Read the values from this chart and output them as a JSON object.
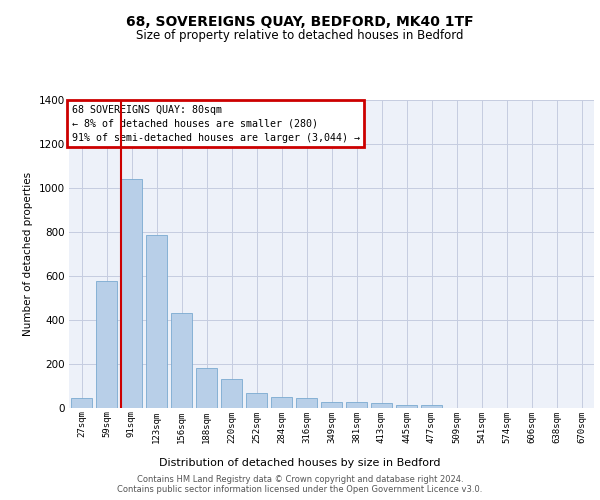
{
  "title": "68, SOVEREIGNS QUAY, BEDFORD, MK40 1TF",
  "subtitle": "Size of property relative to detached houses in Bedford",
  "xlabel": "Distribution of detached houses by size in Bedford",
  "ylabel": "Number of detached properties",
  "categories": [
    "27sqm",
    "59sqm",
    "91sqm",
    "123sqm",
    "156sqm",
    "188sqm",
    "220sqm",
    "252sqm",
    "284sqm",
    "316sqm",
    "349sqm",
    "381sqm",
    "413sqm",
    "445sqm",
    "477sqm",
    "509sqm",
    "541sqm",
    "574sqm",
    "606sqm",
    "638sqm",
    "670sqm"
  ],
  "values": [
    45,
    575,
    1040,
    785,
    430,
    180,
    130,
    65,
    50,
    45,
    25,
    25,
    20,
    12,
    10,
    0,
    0,
    0,
    0,
    0,
    0
  ],
  "bar_color": "#b8cfe8",
  "bar_edge_color": "#7aaad0",
  "marker_line_index": 2,
  "marker_line_color": "#cc0000",
  "ylim_max": 1400,
  "yticks": [
    0,
    200,
    400,
    600,
    800,
    1000,
    1200,
    1400
  ],
  "annotation_line1": "68 SOVEREIGNS QUAY: 80sqm",
  "annotation_line2": "← 8% of detached houses are smaller (280)",
  "annotation_line3": "91% of semi-detached houses are larger (3,044) →",
  "annotation_box_facecolor": "#ffffff",
  "annotation_box_edgecolor": "#cc0000",
  "footer_line1": "Contains HM Land Registry data © Crown copyright and database right 2024.",
  "footer_line2": "Contains public sector information licensed under the Open Government Licence v3.0.",
  "plot_bg_color": "#edf1f9",
  "grid_color": "#c5cce0",
  "fig_bg_color": "#ffffff"
}
